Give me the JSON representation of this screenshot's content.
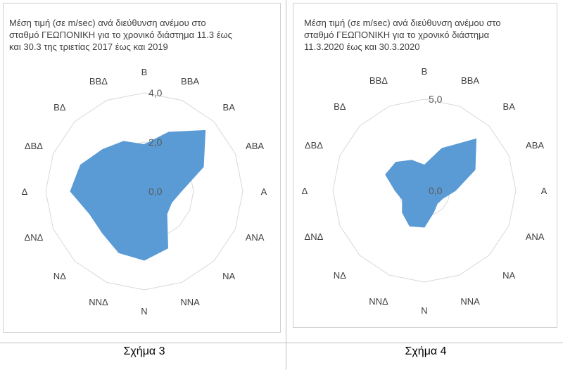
{
  "charts": [
    {
      "title": "Μέση τιμή (σε m/sec) ανά διεύθυνση ανέμου στο\nσταθμό ΓΕΩΠΟΝΙΚΗ  για το χρονικό διάστημα 11.3 έως\nκαι 30.3 της τριετίας 2017 έως και 2019",
      "caption": "Σχήμα 3"
    },
    {
      "title": "Μέση τιμή (σε m/sec) ανά διεύθυνση ανέμου στο\nσταθμό ΓΕΩΠΟΝΙΚΗ  για το χρονικό διάστημα\n11.3.2020 έως και 30.3.2020",
      "caption": "Σχήμα 4"
    }
  ],
  "chart_data": [
    {
      "type": "radar",
      "title": "Μέση τιμή (σε m/sec) ανά διεύθυνση ανέμου στο σταθμό ΓΕΩΠΟΝΙΚΗ  για το χρονικό διάστημα 11.3 έως και 30.3 της τριετίας 2017 έως και 2019",
      "categories": [
        "Β",
        "ΒΒΑ",
        "ΒΑ",
        "ΑΒΑ",
        "Α",
        "ΑΝΑ",
        "ΝΑ",
        "ΝΝΑ",
        "Ν",
        "ΝΝΔ",
        "ΝΔ",
        "ΔΝΔ",
        "Δ",
        "ΔΒΔ",
        "ΒΔ",
        "ΒΒΔ"
      ],
      "series": [
        {
          "values": [
            1.9,
            2.6,
            3.5,
            2.6,
            1.5,
            1.2,
            1.3,
            2.5,
            2.8,
            2.7,
            2.4,
            2.4,
            3.0,
            2.8,
            2.4,
            2.2
          ],
          "color": "#5b9bd5"
        }
      ],
      "radial_ticks": [
        "0,0",
        "2,0",
        "4,0"
      ],
      "rmax": 4.0,
      "grid": true
    },
    {
      "type": "radar",
      "title": "Μέση τιμή (σε m/sec) ανά διεύθυνση ανέμου στο σταθμό ΓΕΩΠΟΝΙΚΗ  για το χρονικό διάστημα 11.3.2020 έως και 30.3.2020",
      "categories": [
        "Β",
        "ΒΒΑ",
        "ΒΑ",
        "ΑΒΑ",
        "Α",
        "ΑΝΑ",
        "ΝΑ",
        "ΝΝΑ",
        "Ν",
        "ΝΝΔ",
        "ΝΔ",
        "ΔΝΔ",
        "Δ",
        "ΔΒΔ",
        "ΒΔ",
        "ΒΒΔ"
      ],
      "series": [
        {
          "values": [
            1.4,
            2.5,
            4.0,
            3.0,
            1.7,
            1.1,
            1.0,
            1.3,
            2.0,
            2.1,
            1.7,
            1.3,
            1.6,
            2.3,
            2.2,
            1.8
          ],
          "color": "#5b9bd5"
        }
      ],
      "radial_ticks": [
        "0,0",
        "5,0"
      ],
      "rmax": 5.0,
      "grid": true
    }
  ]
}
